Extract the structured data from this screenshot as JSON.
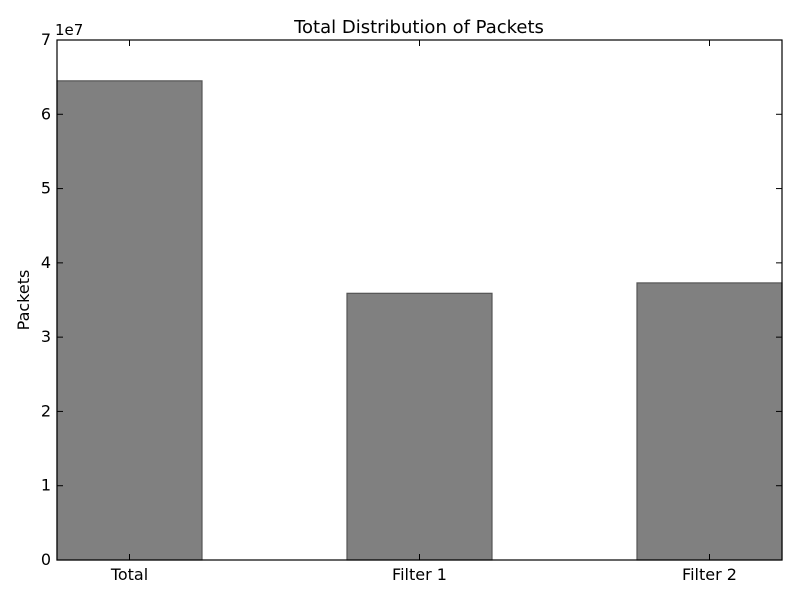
{
  "chart_data": {
    "type": "bar",
    "title": "Total Distribution of Packets",
    "xlabel": "",
    "ylabel": "Packets",
    "y_scale_label": "1e7",
    "categories": [
      "Total",
      "Filter 1",
      "Filter 2"
    ],
    "values": [
      64500000,
      35900000,
      37300000
    ],
    "ylim": [
      0,
      70000000
    ],
    "yticks": [
      0,
      10000000,
      20000000,
      30000000,
      40000000,
      50000000,
      60000000,
      70000000
    ],
    "ytick_labels": [
      "0",
      "1",
      "2",
      "3",
      "4",
      "5",
      "6",
      "7"
    ],
    "grid": false,
    "legend": "none",
    "bar_color": "#808080",
    "bar_edge_color": "#555555"
  }
}
